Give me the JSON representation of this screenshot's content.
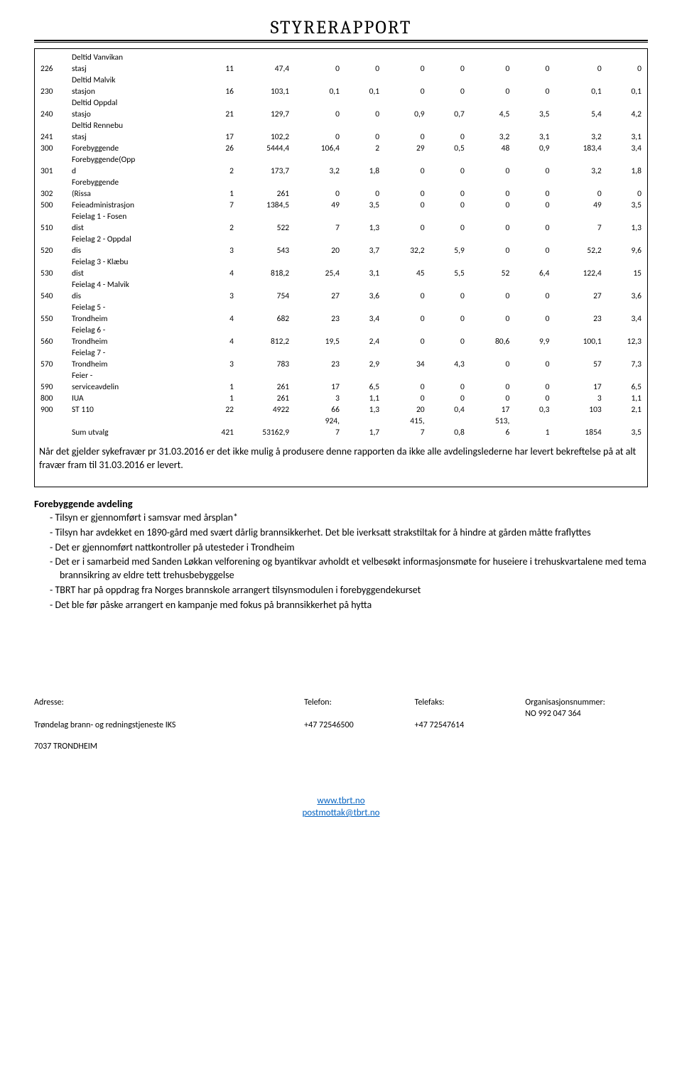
{
  "title": "STYRERAPPORT",
  "table": {
    "groups": [
      {
        "rows": [
          {
            "code": "226",
            "label_lines": [
              "Deltid Vanvikan",
              "stasj"
            ],
            "values": [
              "11",
              "47,4",
              "0",
              "0",
              "0",
              "0",
              "0",
              "0",
              "0",
              "0"
            ]
          },
          {
            "code": "230",
            "label_lines": [
              "Deltid Malvik",
              "stasjon"
            ],
            "values": [
              "16",
              "103,1",
              "0,1",
              "0,1",
              "0",
              "0",
              "0",
              "0",
              "0,1",
              "0,1"
            ]
          },
          {
            "code": "240",
            "label_lines": [
              "Deltid Oppdal",
              "stasjo"
            ],
            "values": [
              "21",
              "129,7",
              "0",
              "0",
              "0,9",
              "0,7",
              "4,5",
              "3,5",
              "5,4",
              "4,2"
            ]
          },
          {
            "code": "241",
            "label_lines": [
              "Deltid Rennebu",
              "stasj"
            ],
            "values": [
              "17",
              "102,2",
              "0",
              "0",
              "0",
              "0",
              "3,2",
              "3,1",
              "3,2",
              "3,1"
            ]
          }
        ]
      },
      {
        "rows": [
          {
            "code": "300",
            "label_lines": [
              "Forebyggende"
            ],
            "values": [
              "26",
              "5444,4",
              "106,4",
              "2",
              "29",
              "0,5",
              "48",
              "0,9",
              "183,4",
              "3,4"
            ]
          },
          {
            "code": "301",
            "label_lines": [
              "Forebyggende(Opp",
              "d"
            ],
            "values": [
              "2",
              "173,7",
              "3,2",
              "1,8",
              "0",
              "0",
              "0",
              "0",
              "3,2",
              "1,8"
            ]
          },
          {
            "code": "302",
            "label_lines": [
              "Forebyggende",
              "(Rissa"
            ],
            "values": [
              "1",
              "261",
              "0",
              "0",
              "0",
              "0",
              "0",
              "0",
              "0",
              "0"
            ]
          }
        ]
      },
      {
        "rows": [
          {
            "code": "500",
            "label_lines": [
              "Feieadministrasjon"
            ],
            "values": [
              "7",
              "1384,5",
              "49",
              "3,5",
              "0",
              "0",
              "0",
              "0",
              "49",
              "3,5"
            ]
          },
          {
            "code": "510",
            "label_lines": [
              "Feielag 1 - Fosen",
              "dist"
            ],
            "values": [
              "2",
              "522",
              "7",
              "1,3",
              "0",
              "0",
              "0",
              "0",
              "7",
              "1,3"
            ]
          },
          {
            "code": "520",
            "label_lines": [
              "Feielag 2 - Oppdal",
              "dis"
            ],
            "values": [
              "3",
              "543",
              "20",
              "3,7",
              "32,2",
              "5,9",
              "0",
              "0",
              "52,2",
              "9,6"
            ]
          },
          {
            "code": "530",
            "label_lines": [
              "Feielag 3 - Klæbu",
              "dist"
            ],
            "values": [
              "4",
              "818,2",
              "25,4",
              "3,1",
              "45",
              "5,5",
              "52",
              "6,4",
              "122,4",
              "15"
            ]
          },
          {
            "code": "540",
            "label_lines": [
              "Feielag 4 - Malvik",
              "dis"
            ],
            "values": [
              "3",
              "754",
              "27",
              "3,6",
              "0",
              "0",
              "0",
              "0",
              "27",
              "3,6"
            ]
          },
          {
            "code": "550",
            "label_lines": [
              "Feielag 5 -",
              "Trondheim"
            ],
            "values": [
              "4",
              "682",
              "23",
              "3,4",
              "0",
              "0",
              "0",
              "0",
              "23",
              "3,4"
            ]
          },
          {
            "code": "560",
            "label_lines": [
              "Feielag 6 -",
              "Trondheim"
            ],
            "values": [
              "4",
              "812,2",
              "19,5",
              "2,4",
              "0",
              "0",
              "80,6",
              "9,9",
              "100,1",
              "12,3"
            ]
          },
          {
            "code": "570",
            "label_lines": [
              "Feielag 7 -",
              "Trondheim"
            ],
            "values": [
              "3",
              "783",
              "23",
              "2,9",
              "34",
              "4,3",
              "0",
              "0",
              "57",
              "7,3"
            ]
          },
          {
            "code": "590",
            "label_lines": [
              "Feier -",
              "serviceavdelin"
            ],
            "values": [
              "1",
              "261",
              "17",
              "6,5",
              "0",
              "0",
              "0",
              "0",
              "17",
              "6,5"
            ]
          }
        ]
      },
      {
        "rows": [
          {
            "code": "800",
            "label_lines": [
              "IUA"
            ],
            "values": [
              "1",
              "261",
              "3",
              "1,1",
              "0",
              "0",
              "0",
              "0",
              "3",
              "1,1"
            ]
          }
        ]
      },
      {
        "rows": [
          {
            "code": "900",
            "label_lines": [
              "ST 110"
            ],
            "values": [
              "22",
              "4922",
              "66",
              "1,3",
              "20",
              "0,4",
              "17",
              "0,3",
              "103",
              "2,1"
            ]
          }
        ]
      }
    ],
    "sum": {
      "label": "Sum utvalg",
      "values_top": [
        "",
        "",
        "924,",
        "",
        "415,",
        "",
        "513,",
        "",
        "",
        ""
      ],
      "values_bot": [
        "421",
        "53162,9",
        "7",
        "1,7",
        "7",
        "0,8",
        "6",
        "1",
        "1854",
        "3,5"
      ]
    },
    "col_widths": [
      "36px",
      "144px",
      "46px",
      "64px",
      "58px",
      "46px",
      "52px",
      "46px",
      "52px",
      "46px",
      "60px",
      "46px"
    ]
  },
  "paragraph": "Når det gjelder sykefravær pr 31.03.2016 er det ikke mulig å produsere denne rapporten da ikke alle avdelingslederne har levert bekreftelse på at alt fravær fram til 31.03.2016 er levert.",
  "section": {
    "heading": "Forebyggende avdeling",
    "bullets": [
      "Tilsyn er gjennomført i samsvar med årsplan*",
      "Tilsyn har avdekket en 1890-gård med svært dårlig brannsikkerhet. Det ble iverksatt strakstiltak for å hindre at gården måtte fraflyttes",
      "Det er gjennomført nattkontroller på utesteder i Trondheim",
      "Det er i samarbeid med Sanden Løkkan velforening og byantikvar avholdt et velbesøkt informasjonsmøte for huseiere i trehuskvartalene med tema brannsikring av eldre tett trehusbebyggelse",
      "TBRT har på oppdrag fra Norges brannskole arrangert tilsynsmodulen i forebyggendekurset",
      "Det ble før påske arrangert en kampanje med fokus på brannsikkerhet på hytta"
    ]
  },
  "footer": {
    "addr_label": "Adresse:",
    "addr_line1": "Trøndelag brann- og redningstjeneste IKS",
    "addr_line2": "7037 TRONDHEIM",
    "tel_label": "Telefon:",
    "tel_val": "+47 72546500",
    "fax_label": "Telefaks:",
    "fax_val": "+47 72547614",
    "org_label": "Organisasjonsnummer:",
    "org_val": "NO 992 047 364",
    "link1": "www.tbrt.no",
    "link2": "postmottak@tbrt.no"
  }
}
